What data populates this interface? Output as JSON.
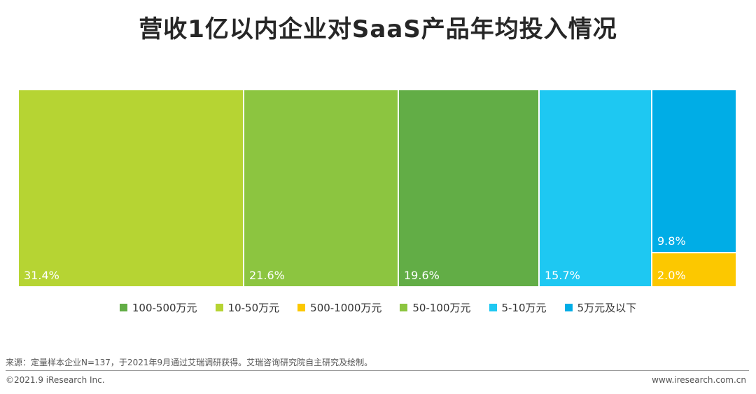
{
  "title": "营收1亿以内企业对SaaS产品年均投入情况",
  "chart_data": {
    "type": "bar",
    "segments": [
      {
        "name": "10-50万元",
        "value": 31.4,
        "label": "31.4%",
        "color": "#b6d433"
      },
      {
        "name": "50-100万元",
        "value": 21.6,
        "label": "21.6%",
        "color": "#8cc540"
      },
      {
        "name": "100-500万元",
        "value": 19.6,
        "label": "19.6%",
        "color": "#62ad46"
      },
      {
        "name": "5-10万元",
        "value": 15.7,
        "label": "15.7%",
        "color": "#1ec8f2"
      },
      {
        "name": "5万元及以下",
        "value": 9.8,
        "label": "9.8%",
        "color": "#00ade6"
      },
      {
        "name": "500-1000万元",
        "value": 2.0,
        "label": "2.0%",
        "color": "#fcc800"
      }
    ],
    "legend": [
      {
        "name": "100-500万元",
        "color": "#62ad46"
      },
      {
        "name": "10-50万元",
        "color": "#b6d433"
      },
      {
        "name": "500-1000万元",
        "color": "#fcc800"
      },
      {
        "name": "50-100万元",
        "color": "#8cc540"
      },
      {
        "name": "5-10万元",
        "color": "#1ec8f2"
      },
      {
        "name": "5万元及以下",
        "color": "#00ade6"
      }
    ],
    "legend_position": "bottom"
  },
  "footer": {
    "source": "来源：定量样本企业N=137，于2021年9月通过艾瑞调研获得。艾瑞咨询研究院自主研究及绘制。",
    "copyright": "©2021.9 iResearch Inc.",
    "website": "www.iresearch.com.cn"
  }
}
